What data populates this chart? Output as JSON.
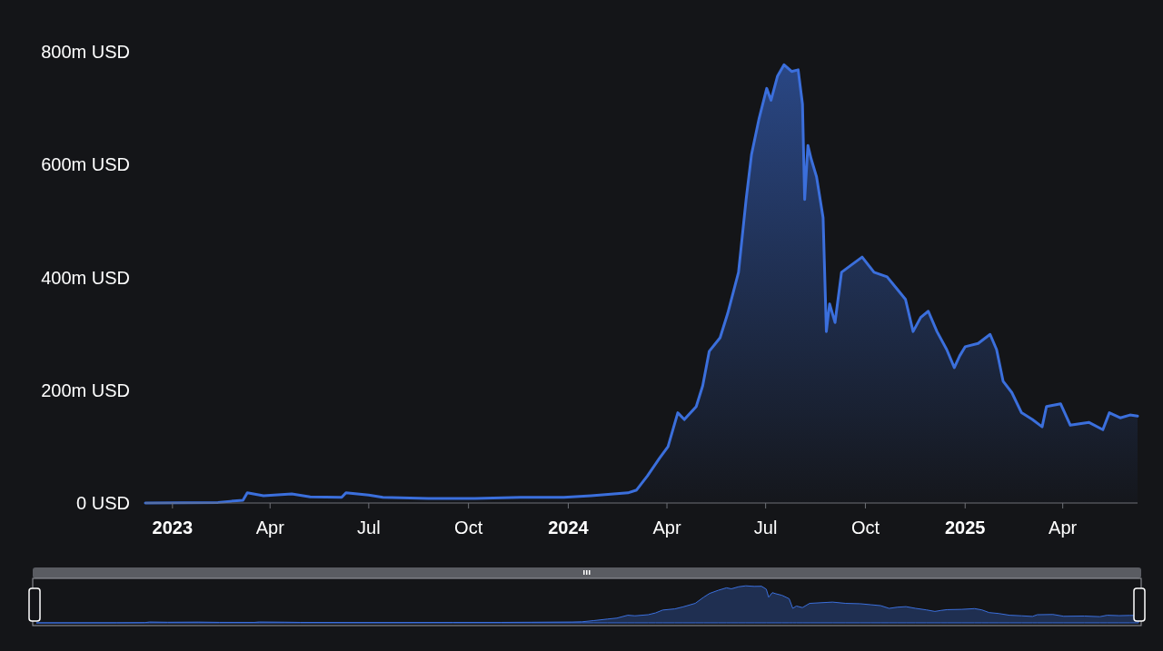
{
  "chart_data": {
    "type": "area",
    "x": [
      "2022-12-07",
      "2023-02-12",
      "2023-03-07",
      "2023-03-11",
      "2023-03-26",
      "2023-04-21",
      "2023-05-08",
      "2023-06-06",
      "2023-06-10",
      "2023-07-01",
      "2023-07-14",
      "2023-08-25",
      "2023-10-07",
      "2023-11-18",
      "2023-12-28",
      "2024-01-22",
      "2024-02-25",
      "2024-03-04",
      "2024-03-14",
      "2024-03-25",
      "2024-04-02",
      "2024-04-11",
      "2024-04-17",
      "2024-04-28",
      "2024-05-04",
      "2024-05-10",
      "2024-05-20",
      "2024-05-27",
      "2024-06-06",
      "2024-06-13",
      "2024-06-18",
      "2024-06-25",
      "2024-07-02",
      "2024-07-06",
      "2024-07-12",
      "2024-07-18",
      "2024-07-25",
      "2024-07-31",
      "2024-08-04",
      "2024-08-06",
      "2024-08-09",
      "2024-08-12",
      "2024-08-17",
      "2024-08-23",
      "2024-08-26",
      "2024-08-29",
      "2024-09-03",
      "2024-09-09",
      "2024-09-18",
      "2024-09-28",
      "2024-10-09",
      "2024-10-21",
      "2024-10-30",
      "2024-11-07",
      "2024-11-14",
      "2024-11-21",
      "2024-11-28",
      "2024-12-06",
      "2024-12-15",
      "2024-12-22",
      "2024-12-27",
      "2025-01-01",
      "2025-01-13",
      "2025-01-24",
      "2025-01-30",
      "2025-02-05",
      "2025-02-13",
      "2025-02-22",
      "2025-03-04",
      "2025-03-13",
      "2025-03-17",
      "2025-03-30",
      "2025-04-08",
      "2025-04-25",
      "2025-05-08",
      "2025-05-14",
      "2025-05-24",
      "2025-06-02",
      "2025-06-09"
    ],
    "series": [
      {
        "color": "#3b6fdc",
        "values": [
          0,
          1,
          5,
          18,
          13,
          16,
          11,
          10,
          18,
          14,
          10,
          8,
          8,
          10,
          10,
          13,
          18,
          23,
          48,
          79,
          100,
          160,
          148,
          171,
          208,
          269,
          293,
          336,
          409,
          538,
          618,
          682,
          735,
          714,
          757,
          777,
          765,
          768,
          707,
          538,
          634,
          610,
          578,
          506,
          304,
          353,
          320,
          409,
          422,
          436,
          409,
          401,
          380,
          361,
          304,
          329,
          340,
          304,
          272,
          240,
          261,
          277,
          283,
          299,
          272,
          216,
          196,
          160,
          148,
          135,
          171,
          176,
          138,
          143,
          130,
          160,
          151,
          156,
          154
        ]
      }
    ],
    "xlim": [
      "2022-12-07",
      "2025-06-09"
    ],
    "xticks": [
      {
        "value": "2023-01-01",
        "label": "2023"
      },
      {
        "value": "2023-04-01",
        "label": "Apr"
      },
      {
        "value": "2023-07-01",
        "label": "Jul"
      },
      {
        "value": "2023-10-01",
        "label": "Oct"
      },
      {
        "value": "2024-01-01",
        "label": "2024"
      },
      {
        "value": "2024-04-01",
        "label": "Apr"
      },
      {
        "value": "2024-07-01",
        "label": "Jul"
      },
      {
        "value": "2024-10-01",
        "label": "Oct"
      },
      {
        "value": "2025-01-01",
        "label": "2025"
      },
      {
        "value": "2025-04-01",
        "label": "Apr"
      }
    ],
    "ylim": [
      0,
      800
    ],
    "yticks": [
      {
        "value": 0,
        "label": "0 USD"
      },
      {
        "value": 200,
        "label": "200m USD"
      },
      {
        "value": 400,
        "label": "400m USD"
      },
      {
        "value": 600,
        "label": "600m USD"
      },
      {
        "value": 800,
        "label": "800m USD"
      }
    ],
    "grid": false
  }
}
